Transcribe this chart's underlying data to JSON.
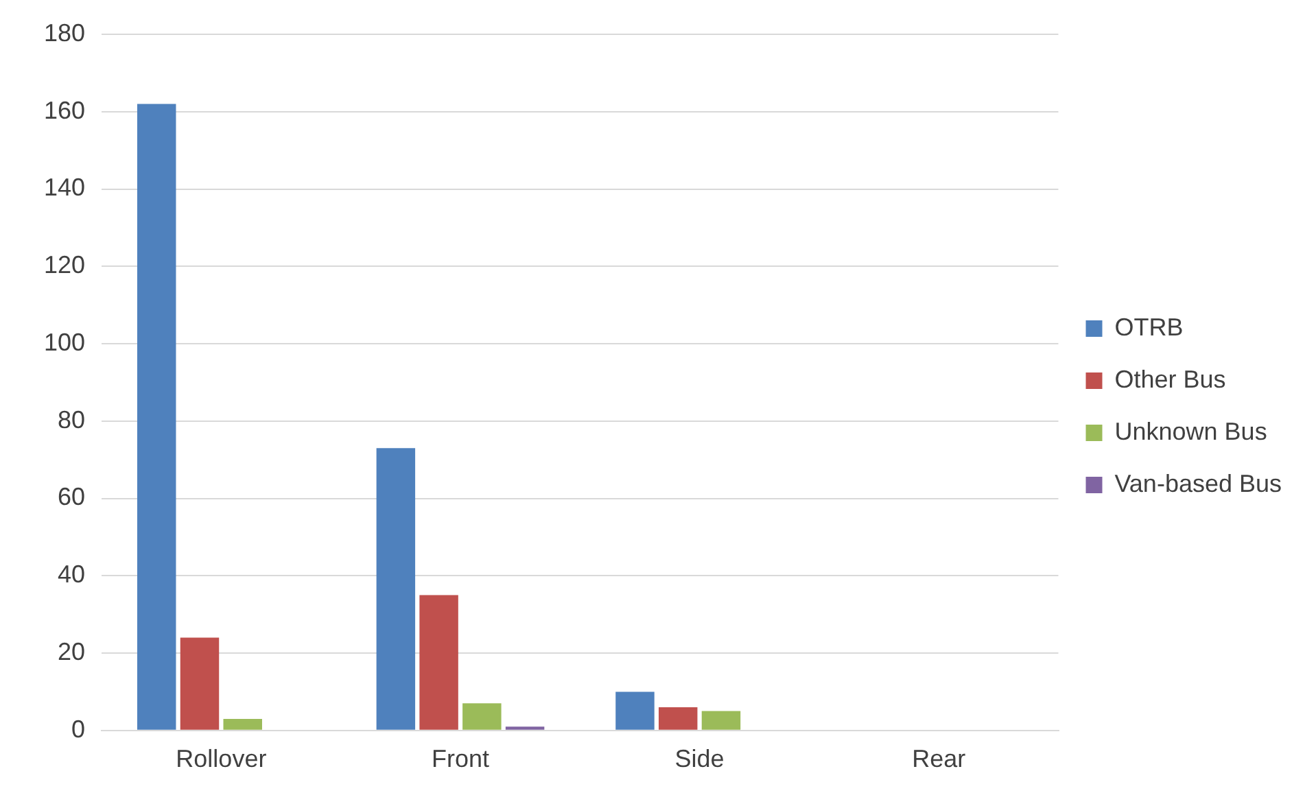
{
  "chart_data": {
    "type": "bar",
    "categories": [
      "Rollover",
      "Front",
      "Side",
      "Rear"
    ],
    "series": [
      {
        "name": "OTRB",
        "color": "#4f81bd",
        "values": [
          162,
          73,
          10,
          0
        ]
      },
      {
        "name": "Other Bus",
        "color": "#c0504d",
        "values": [
          24,
          35,
          6,
          0
        ]
      },
      {
        "name": "Unknown Bus",
        "color": "#9bbb59",
        "values": [
          3,
          7,
          5,
          0
        ]
      },
      {
        "name": "Van-based Bus",
        "color": "#8064a2",
        "values": [
          0,
          1,
          0,
          0
        ]
      }
    ],
    "ylim": [
      0,
      180
    ],
    "yticks": [
      0,
      20,
      40,
      60,
      80,
      100,
      120,
      140,
      160,
      180
    ],
    "grid": "y",
    "legend": "right"
  }
}
